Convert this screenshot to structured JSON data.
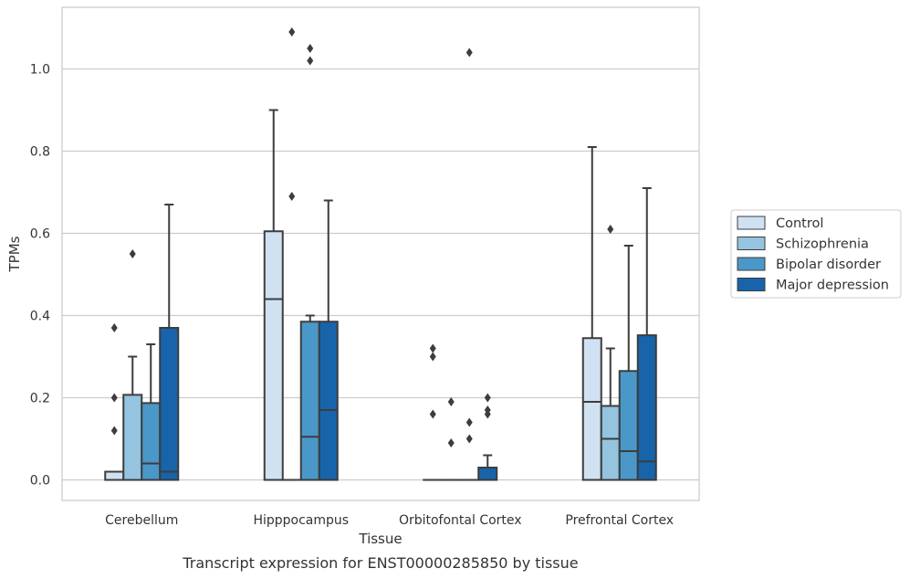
{
  "chart_data": {
    "type": "box",
    "caption": "Transcript expression for ENST00000285850 by tissue",
    "xlabel": "Tissue",
    "ylabel": "TPMs",
    "ylim": [
      -0.05,
      1.15
    ],
    "yticks": [
      "0.0",
      "0.2",
      "0.4",
      "0.6",
      "0.8",
      "1.0"
    ],
    "grid": true,
    "legend_position": "right",
    "categories": [
      "Cerebellum",
      "Hipppocampus",
      "Orbitofontal Cortex",
      "Prefrontal Cortex"
    ],
    "series": [
      {
        "name": "Control",
        "color": "#d0e1f2",
        "boxes": [
          {
            "q1": 0.0,
            "median": 0.0,
            "q3": 0.02,
            "whisker_low": 0.0,
            "whisker_high": 0.02,
            "outliers": [
              0.12,
              0.2,
              0.37
            ]
          },
          {
            "q1": 0.0,
            "median": 0.44,
            "q3": 0.605,
            "whisker_low": 0.0,
            "whisker_high": 0.9,
            "outliers": []
          },
          {
            "q1": 0.0,
            "median": 0.0,
            "q3": 0.0,
            "whisker_low": 0.0,
            "whisker_high": 0.0,
            "outliers": [
              0.16,
              0.3,
              0.32
            ]
          },
          {
            "q1": 0.0,
            "median": 0.19,
            "q3": 0.345,
            "whisker_low": 0.0,
            "whisker_high": 0.81,
            "outliers": []
          }
        ]
      },
      {
        "name": "Schizophrenia",
        "color": "#94c4df",
        "boxes": [
          {
            "q1": 0.0,
            "median": 0.0,
            "q3": 0.207,
            "whisker_low": 0.0,
            "whisker_high": 0.3,
            "outliers": [
              0.55
            ]
          },
          {
            "q1": 0.0,
            "median": 0.0,
            "q3": 0.0,
            "whisker_low": 0.0,
            "whisker_high": 0.0,
            "outliers": [
              0.69,
              1.09
            ]
          },
          {
            "q1": 0.0,
            "median": 0.0,
            "q3": 0.0,
            "whisker_low": 0.0,
            "whisker_high": 0.0,
            "outliers": [
              0.09,
              0.19
            ]
          },
          {
            "q1": 0.0,
            "median": 0.1,
            "q3": 0.18,
            "whisker_low": 0.0,
            "whisker_high": 0.32,
            "outliers": [
              0.61
            ]
          }
        ]
      },
      {
        "name": "Bipolar disorder",
        "color": "#4a98c9",
        "boxes": [
          {
            "q1": 0.0,
            "median": 0.04,
            "q3": 0.187,
            "whisker_low": 0.0,
            "whisker_high": 0.33,
            "outliers": []
          },
          {
            "q1": 0.0,
            "median": 0.105,
            "q3": 0.385,
            "whisker_low": 0.0,
            "whisker_high": 0.4,
            "outliers": [
              1.02,
              1.05
            ]
          },
          {
            "q1": 0.0,
            "median": 0.0,
            "q3": 0.0,
            "whisker_low": 0.0,
            "whisker_high": 0.0,
            "outliers": [
              0.1,
              0.14,
              1.04
            ]
          },
          {
            "q1": 0.0,
            "median": 0.07,
            "q3": 0.265,
            "whisker_low": 0.0,
            "whisker_high": 0.57,
            "outliers": []
          }
        ]
      },
      {
        "name": "Major depression",
        "color": "#1764ab",
        "boxes": [
          {
            "q1": 0.0,
            "median": 0.02,
            "q3": 0.37,
            "whisker_low": 0.0,
            "whisker_high": 0.67,
            "outliers": []
          },
          {
            "q1": 0.0,
            "median": 0.17,
            "q3": 0.385,
            "whisker_low": 0.0,
            "whisker_high": 0.68,
            "outliers": []
          },
          {
            "q1": 0.0,
            "median": 0.0,
            "q3": 0.03,
            "whisker_low": 0.0,
            "whisker_high": 0.06,
            "outliers": [
              0.16,
              0.17,
              0.2
            ]
          },
          {
            "q1": 0.0,
            "median": 0.045,
            "q3": 0.352,
            "whisker_low": 0.0,
            "whisker_high": 0.71,
            "outliers": []
          }
        ]
      }
    ]
  }
}
